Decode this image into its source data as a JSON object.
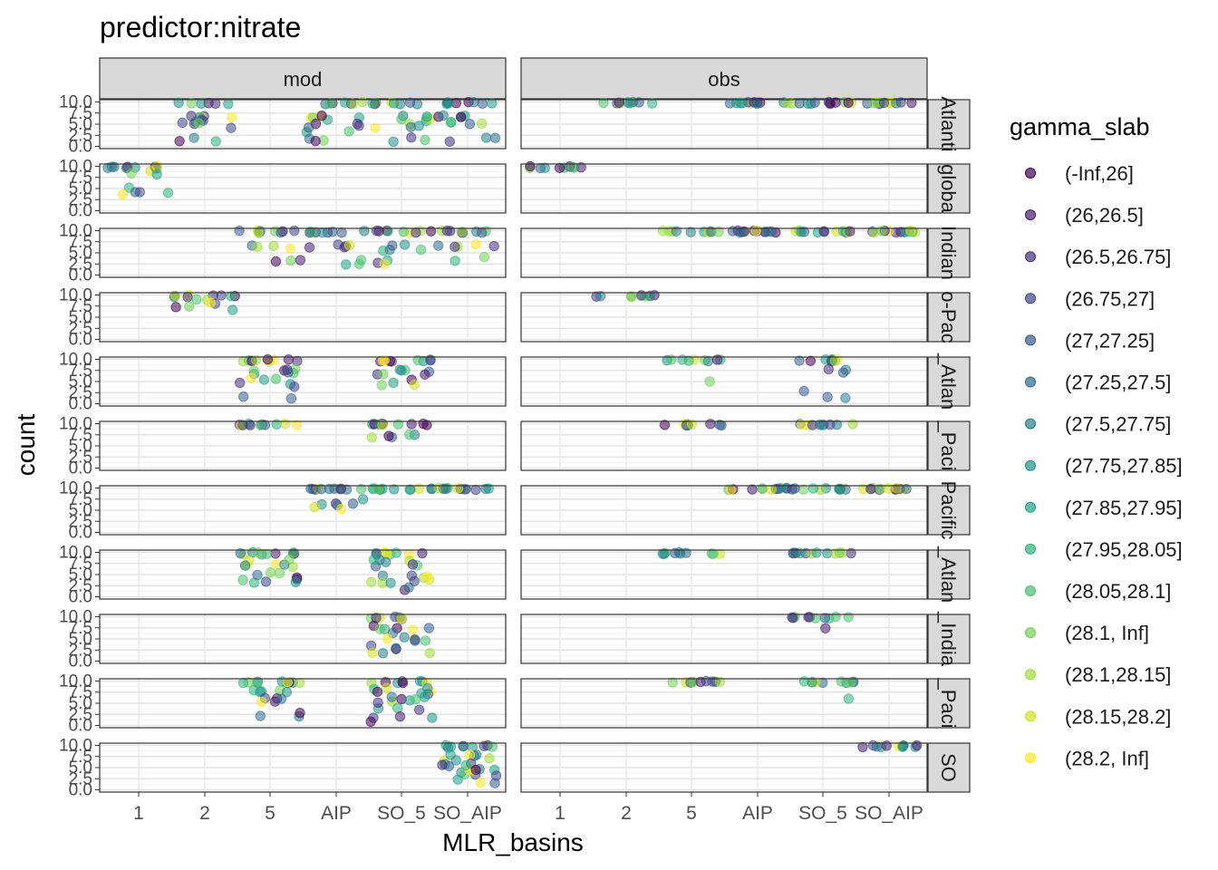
{
  "chart_data": {
    "type": "scatter",
    "title": "predictor:nitrate",
    "xlabel": "MLR_basins",
    "ylabel": "count",
    "x_categories": [
      "1",
      "2",
      "5",
      "AIP",
      "SO_5",
      "SO_AIP"
    ],
    "y_ticks": [
      "0.0",
      "2.5",
      "5.0",
      "7.5",
      "10.0"
    ],
    "ylim": [
      0,
      10
    ],
    "grid": true,
    "facet_columns": [
      "mod",
      "obs"
    ],
    "facet_rows": [
      "Atlanti",
      "globa",
      "Indian",
      "o-Pac",
      "_Atlan",
      "_Paci",
      "Pacific",
      "_Atlan",
      "_India",
      "_Paci",
      "SO"
    ],
    "legend": {
      "title": "gamma_slab",
      "placement": "right",
      "entries": [
        "(-Inf,26]",
        "(26,26.5]",
        "(26.5,26.75]",
        "(26.75,27]",
        "(27,27.25]",
        "(27.25,27.5]",
        "(27.5,27.75]",
        "(27.75,27.85]",
        "(27.85,27.95]",
        "(27.95,28.05]",
        "(28.05,28.1]",
        "(28.1, Inf]",
        "(28.1,28.15]",
        "(28.15,28.2]",
        "(28.2, Inf]"
      ],
      "colors": [
        "#440154",
        "#481b6d",
        "#46327e",
        "#3f4788",
        "#365c8d",
        "#2e6e8e",
        "#277f8e",
        "#21918c",
        "#1fa187",
        "#2db27d",
        "#4ac16d",
        "#71cf57",
        "#a0da39",
        "#d0e11c",
        "#fde725"
      ]
    },
    "panels": [
      {
        "row": 0,
        "col": "mod",
        "points": [
          {
            "x": "2",
            "ranges": [
              [
                9.5,
                10.0,
                6
              ],
              [
                6.5,
                7.0,
                5
              ],
              [
                4.0,
                6.0,
                7
              ],
              [
                0.5,
                2.0,
                3
              ]
            ]
          },
          {
            "x": "AIP",
            "ranges": [
              [
                9.5,
                10.0,
                8
              ],
              [
                6.0,
                7.0,
                6
              ],
              [
                3.0,
                5.5,
                6
              ],
              [
                1.0,
                2.5,
                3
              ]
            ]
          },
          {
            "x": "SO_5",
            "ranges": [
              [
                9.5,
                10.0,
                9
              ],
              [
                5.5,
                7.0,
                6
              ],
              [
                3.5,
                5.0,
                4
              ],
              [
                1.0,
                2.0,
                3
              ]
            ]
          },
          {
            "x": "SO_AIP",
            "ranges": [
              [
                9.5,
                10.0,
                9
              ],
              [
                6.5,
                7.0,
                5
              ],
              [
                5.0,
                6.0,
                4
              ],
              [
                1.0,
                2.0,
                3
              ]
            ]
          }
        ]
      },
      {
        "row": 0,
        "col": "obs",
        "points": [
          {
            "x": "2",
            "ranges": [
              [
                9.6,
                10.0,
                10
              ]
            ]
          },
          {
            "x": "AIP",
            "ranges": [
              [
                9.6,
                10.0,
                12
              ]
            ]
          },
          {
            "x": "SO_5",
            "ranges": [
              [
                9.6,
                10.0,
                12
              ]
            ]
          },
          {
            "x": "SO_AIP",
            "ranges": [
              [
                9.6,
                10.0,
                12
              ]
            ]
          }
        ]
      },
      {
        "row": 1,
        "col": "mod",
        "points": [
          {
            "x": "1",
            "ranges": [
              [
                9.5,
                10.0,
                9
              ],
              [
                8.0,
                9.0,
                3
              ],
              [
                4.0,
                6.0,
                4
              ],
              [
                3.5,
                4.0,
                1
              ]
            ]
          }
        ]
      },
      {
        "row": 1,
        "col": "obs",
        "points": [
          {
            "x": "1",
            "ranges": [
              [
                9.6,
                10.0,
                10
              ]
            ]
          }
        ]
      },
      {
        "row": 2,
        "col": "mod",
        "points": [
          {
            "x": "5",
            "ranges": [
              [
                9.5,
                10.0,
                9
              ],
              [
                5.5,
                7.0,
                4
              ],
              [
                1.0,
                4.0,
                3
              ]
            ]
          },
          {
            "x": "AIP",
            "ranges": [
              [
                9.5,
                10.0,
                9
              ],
              [
                5.5,
                7.0,
                5
              ],
              [
                1.5,
                4.0,
                3
              ]
            ]
          },
          {
            "x": "SO_5",
            "ranges": [
              [
                9.5,
                10.0,
                9
              ],
              [
                5.5,
                7.0,
                5
              ],
              [
                2.5,
                4.5,
                3
              ]
            ]
          },
          {
            "x": "SO_AIP",
            "ranges": [
              [
                9.5,
                10.0,
                9
              ],
              [
                5.5,
                7.0,
                5
              ],
              [
                3.0,
                4.5,
                2
              ]
            ]
          }
        ]
      },
      {
        "row": 2,
        "col": "obs",
        "points": [
          {
            "x": "5",
            "ranges": [
              [
                9.6,
                10.0,
                10
              ]
            ]
          },
          {
            "x": "AIP",
            "ranges": [
              [
                9.6,
                10.0,
                14
              ]
            ]
          },
          {
            "x": "SO_5",
            "ranges": [
              [
                9.6,
                10.0,
                12
              ]
            ]
          },
          {
            "x": "SO_AIP",
            "ranges": [
              [
                9.6,
                10.0,
                12
              ]
            ]
          }
        ]
      },
      {
        "row": 3,
        "col": "mod",
        "points": [
          {
            "x": "2",
            "ranges": [
              [
                9.5,
                10.0,
                9
              ],
              [
                8.0,
                9.0,
                4
              ],
              [
                6.0,
                7.5,
                3
              ]
            ]
          }
        ]
      },
      {
        "row": 3,
        "col": "obs",
        "points": [
          {
            "x": "2",
            "ranges": [
              [
                9.6,
                10.0,
                10
              ]
            ]
          }
        ]
      },
      {
        "row": 4,
        "col": "mod",
        "points": [
          {
            "x": "5",
            "ranges": [
              [
                9.5,
                10.0,
                9
              ],
              [
                6.5,
                8.0,
                7
              ],
              [
                3.5,
                6.0,
                6
              ],
              [
                1.0,
                2.0,
                2
              ]
            ]
          },
          {
            "x": "SO_5",
            "ranges": [
              [
                9.5,
                10.0,
                9
              ],
              [
                6.5,
                8.0,
                7
              ],
              [
                4.0,
                5.5,
                4
              ]
            ]
          }
        ]
      },
      {
        "row": 4,
        "col": "obs",
        "points": [
          {
            "x": "5",
            "ranges": [
              [
                9.6,
                10.0,
                9
              ],
              [
                5.0,
                5.5,
                1
              ]
            ]
          },
          {
            "x": "SO_5",
            "ranges": [
              [
                9.6,
                10.0,
                9
              ],
              [
                7.0,
                8.0,
                3
              ],
              [
                1.0,
                3.0,
                3
              ]
            ]
          }
        ]
      },
      {
        "row": 5,
        "col": "mod",
        "points": [
          {
            "x": "5",
            "ranges": [
              [
                9.6,
                10.0,
                12
              ]
            ]
          },
          {
            "x": "SO_5",
            "ranges": [
              [
                9.6,
                10.0,
                10
              ],
              [
                6.5,
                8.0,
                5
              ]
            ]
          }
        ]
      },
      {
        "row": 5,
        "col": "obs",
        "points": [
          {
            "x": "5",
            "ranges": [
              [
                9.6,
                10.0,
                10
              ]
            ]
          },
          {
            "x": "SO_5",
            "ranges": [
              [
                9.6,
                10.0,
                10
              ]
            ]
          }
        ]
      },
      {
        "row": 6,
        "col": "mod",
        "points": [
          {
            "x": "AIP",
            "ranges": [
              [
                9.6,
                10.0,
                12
              ],
              [
                5.0,
                7.5,
                7
              ]
            ]
          },
          {
            "x": "SO_5",
            "ranges": [
              [
                9.6,
                10.0,
                12
              ]
            ]
          },
          {
            "x": "SO_AIP",
            "ranges": [
              [
                9.6,
                10.0,
                12
              ]
            ]
          }
        ]
      },
      {
        "row": 6,
        "col": "obs",
        "points": [
          {
            "x": "AIP",
            "ranges": [
              [
                9.6,
                10.0,
                12
              ]
            ]
          },
          {
            "x": "SO_5",
            "ranges": [
              [
                9.6,
                10.0,
                12
              ]
            ]
          },
          {
            "x": "SO_AIP",
            "ranges": [
              [
                9.6,
                10.0,
                12
              ]
            ]
          }
        ]
      },
      {
        "row": 7,
        "col": "mod",
        "points": [
          {
            "x": "5",
            "ranges": [
              [
                9.5,
                10.0,
                10
              ],
              [
                6.5,
                8.5,
                7
              ],
              [
                3.0,
                5.5,
                9
              ]
            ]
          },
          {
            "x": "SO_5",
            "ranges": [
              [
                9.5,
                10.0,
                8
              ],
              [
                6.5,
                8.5,
                7
              ],
              [
                3.0,
                5.5,
                9
              ],
              [
                1.5,
                2.5,
                2
              ]
            ]
          }
        ]
      },
      {
        "row": 7,
        "col": "obs",
        "points": [
          {
            "x": "5",
            "ranges": [
              [
                9.6,
                10.0,
                10
              ]
            ]
          },
          {
            "x": "SO_5",
            "ranges": [
              [
                9.6,
                10.0,
                12
              ]
            ]
          }
        ]
      },
      {
        "row": 8,
        "col": "mod",
        "points": [
          {
            "x": "SO_5",
            "ranges": [
              [
                9.5,
                10.0,
                8
              ],
              [
                7.0,
                8.5,
                6
              ],
              [
                4.5,
                6.5,
                6
              ],
              [
                1.5,
                3.5,
                6
              ]
            ]
          }
        ]
      },
      {
        "row": 8,
        "col": "obs",
        "points": [
          {
            "x": "SO_5",
            "ranges": [
              [
                9.6,
                10.0,
                10
              ],
              [
                7.0,
                7.5,
                1
              ]
            ]
          }
        ]
      },
      {
        "row": 9,
        "col": "mod",
        "points": [
          {
            "x": "5",
            "ranges": [
              [
                9.5,
                10.0,
                10
              ],
              [
                7.0,
                8.0,
                5
              ],
              [
                4.5,
                6.5,
                5
              ],
              [
                2.0,
                3.0,
                3
              ]
            ]
          },
          {
            "x": "SO_5",
            "ranges": [
              [
                9.5,
                10.0,
                8
              ],
              [
                7.0,
                8.5,
                7
              ],
              [
                3.5,
                6.5,
                10
              ],
              [
                0.5,
                2.5,
                4
              ]
            ]
          }
        ]
      },
      {
        "row": 9,
        "col": "obs",
        "points": [
          {
            "x": "5",
            "ranges": [
              [
                9.6,
                10.0,
                10
              ]
            ]
          },
          {
            "x": "SO_5",
            "ranges": [
              [
                9.6,
                10.0,
                10
              ],
              [
                6.0,
                6.5,
                1
              ]
            ]
          }
        ]
      },
      {
        "row": 10,
        "col": "mod",
        "points": [
          {
            "x": "SO_AIP",
            "ranges": [
              [
                9.5,
                10.0,
                9
              ],
              [
                6.5,
                8.5,
                7
              ],
              [
                3.0,
                6.0,
                14
              ],
              [
                1.5,
                2.5,
                3
              ]
            ]
          }
        ]
      },
      {
        "row": 10,
        "col": "obs",
        "points": [
          {
            "x": "SO_AIP",
            "ranges": [
              [
                9.6,
                10.0,
                12
              ]
            ]
          }
        ]
      }
    ]
  }
}
